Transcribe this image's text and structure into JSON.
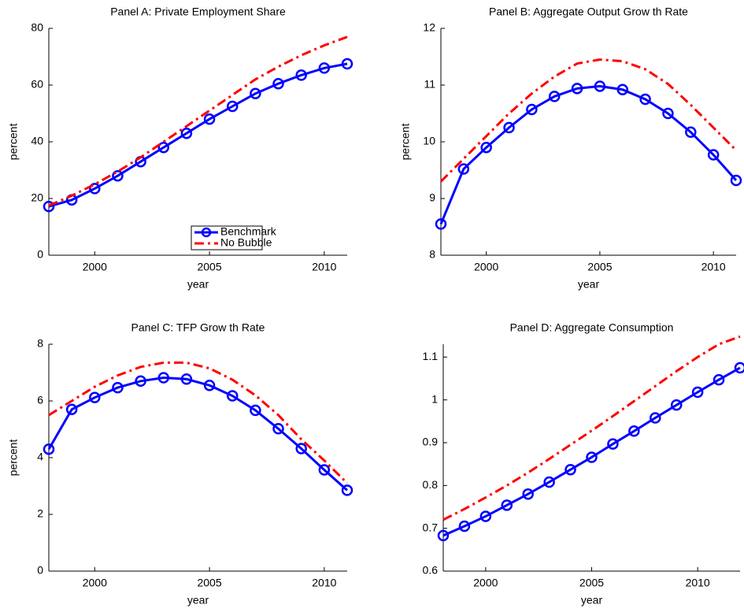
{
  "chart_data": [
    {
      "type": "line",
      "title": "Panel A: Private Employment Share",
      "xlabel": "year",
      "ylabel": "percent",
      "x": [
        1998,
        1999,
        2000,
        2001,
        2002,
        2003,
        2004,
        2005,
        2006,
        2007,
        2008,
        2009,
        2010,
        2011
      ],
      "xlim": [
        1998,
        2011
      ],
      "xticks": [
        2000,
        2005,
        2010
      ],
      "ylim": [
        0,
        80
      ],
      "yticks": [
        0,
        20,
        40,
        60,
        80
      ],
      "legend": "lower right",
      "series": [
        {
          "name": "Benchmark",
          "color": "#0000ff",
          "style": "solid",
          "marker": "o",
          "values": [
            17.2,
            19.5,
            23.5,
            28,
            33,
            38,
            43,
            48,
            52.5,
            57,
            60.5,
            63.5,
            66,
            67.5
          ]
        },
        {
          "name": "No Bubble",
          "color": "#ff0000",
          "style": "dashdot",
          "values": [
            17.5,
            21,
            25,
            29.5,
            34.5,
            40,
            45.5,
            51,
            56.5,
            62,
            66.5,
            70.5,
            74,
            77
          ]
        }
      ]
    },
    {
      "type": "line",
      "title": "Panel B: Aggregate Output Grow th Rate",
      "xlabel": "year",
      "ylabel": "percent",
      "x": [
        1998,
        1999,
        2000,
        2001,
        2002,
        2003,
        2004,
        2005,
        2006,
        2007,
        2008,
        2009,
        2010,
        2011
      ],
      "xlim": [
        1998,
        2011
      ],
      "xticks": [
        2000,
        2005,
        2010
      ],
      "ylim": [
        8,
        12
      ],
      "yticks": [
        8,
        9,
        10,
        11,
        12
      ],
      "series": [
        {
          "color": "#0000ff",
          "style": "solid",
          "marker": "o",
          "values": [
            8.55,
            9.52,
            9.9,
            10.25,
            10.57,
            10.8,
            10.94,
            10.98,
            10.92,
            10.75,
            10.5,
            10.17,
            9.77,
            9.32
          ]
        },
        {
          "color": "#ff0000",
          "style": "dashdot",
          "values": [
            9.3,
            9.7,
            10.1,
            10.5,
            10.85,
            11.15,
            11.38,
            11.45,
            11.42,
            11.28,
            11.02,
            10.65,
            10.25,
            9.85
          ]
        }
      ]
    },
    {
      "type": "line",
      "title": "Panel C: TFP Grow th Rate",
      "xlabel": "year",
      "ylabel": "percent",
      "x": [
        1998,
        1999,
        2000,
        2001,
        2002,
        2003,
        2004,
        2005,
        2006,
        2007,
        2008,
        2009,
        2010,
        2011
      ],
      "xlim": [
        1998,
        2011
      ],
      "xticks": [
        2000,
        2005,
        2010
      ],
      "ylim": [
        0,
        8
      ],
      "yticks": [
        0,
        2,
        4,
        6,
        8
      ],
      "series": [
        {
          "color": "#0000ff",
          "style": "solid",
          "marker": "o",
          "values": [
            4.3,
            5.7,
            6.12,
            6.47,
            6.7,
            6.82,
            6.77,
            6.55,
            6.18,
            5.67,
            5.02,
            4.32,
            3.57,
            2.85
          ]
        },
        {
          "color": "#ff0000",
          "style": "dashdot",
          "values": [
            5.5,
            6.0,
            6.5,
            6.9,
            7.2,
            7.35,
            7.35,
            7.15,
            6.75,
            6.2,
            5.5,
            4.65,
            3.9,
            3.1
          ]
        }
      ]
    },
    {
      "type": "line",
      "title": "Panel D: Aggregate Consumption",
      "xlabel": "year",
      "x": [
        1998,
        1999,
        2000,
        2001,
        2002,
        2003,
        2004,
        2005,
        2006,
        2007,
        2008,
        2009,
        2010,
        2011,
        2012
      ],
      "xlim": [
        1998,
        2012
      ],
      "xticks": [
        2000,
        2005,
        2010
      ],
      "ylim": [
        0.6,
        1.13
      ],
      "yticks": [
        0.6,
        0.7,
        0.8,
        0.9,
        1,
        1.1
      ],
      "series": [
        {
          "color": "#0000ff",
          "style": "solid",
          "marker": "o",
          "values": [
            0.683,
            0.705,
            0.728,
            0.754,
            0.78,
            0.808,
            0.837,
            0.866,
            0.897,
            0.927,
            0.958,
            0.988,
            1.018,
            1.047,
            1.075
          ]
        },
        {
          "color": "#ff0000",
          "style": "dashdot",
          "values": [
            0.72,
            0.745,
            0.772,
            0.8,
            0.83,
            0.862,
            0.895,
            0.928,
            0.962,
            0.997,
            1.032,
            1.067,
            1.1,
            1.13,
            1.148
          ]
        }
      ]
    }
  ]
}
